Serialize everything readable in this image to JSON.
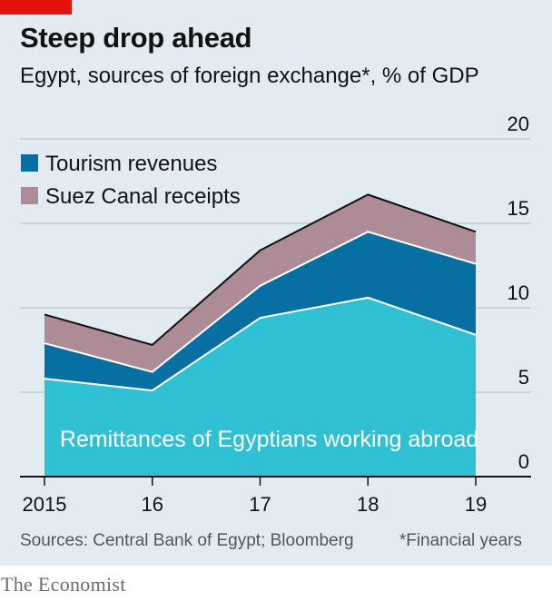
{
  "header": {
    "title": "Steep drop ahead",
    "subtitle": "Egypt, sources of foreign exchange*, % of GDP"
  },
  "footer": {
    "source": "Sources: Central Bank of Egypt; Bloomberg",
    "note": "*Financial years",
    "brand": "The Economist"
  },
  "colors": {
    "remittances": "#2fc1d3",
    "tourism": "#076fa1",
    "suez": "#ad8c97",
    "background": "#e1ebf1",
    "brand_red": "#e3120b"
  },
  "chart_data": {
    "type": "area",
    "stacked": true,
    "x": [
      2015,
      2016,
      2017,
      2018,
      2019
    ],
    "x_tick_labels": [
      "2015",
      "16",
      "17",
      "18",
      "19"
    ],
    "y_tick_labels": [
      "0",
      "5",
      "10",
      "15",
      "20"
    ],
    "ylim": [
      0,
      20
    ],
    "y_axis_side": "right",
    "grid": true,
    "legend_position": "top-left",
    "series": [
      {
        "name": "Remittances of Egyptians working abroad",
        "values": [
          5.8,
          5.1,
          9.4,
          10.6,
          8.4
        ],
        "color": "#2fc1d3"
      },
      {
        "name": "Tourism revenues",
        "values": [
          2.1,
          1.1,
          1.9,
          3.9,
          4.2
        ],
        "color": "#076fa1"
      },
      {
        "name": "Suez Canal receipts",
        "values": [
          1.7,
          1.6,
          2.1,
          2.2,
          1.9
        ],
        "color": "#ad8c97"
      }
    ],
    "legend": [
      "Tourism revenues",
      "Suez Canal receipts"
    ],
    "area_label": "Remittances of Egyptians working abroad"
  }
}
